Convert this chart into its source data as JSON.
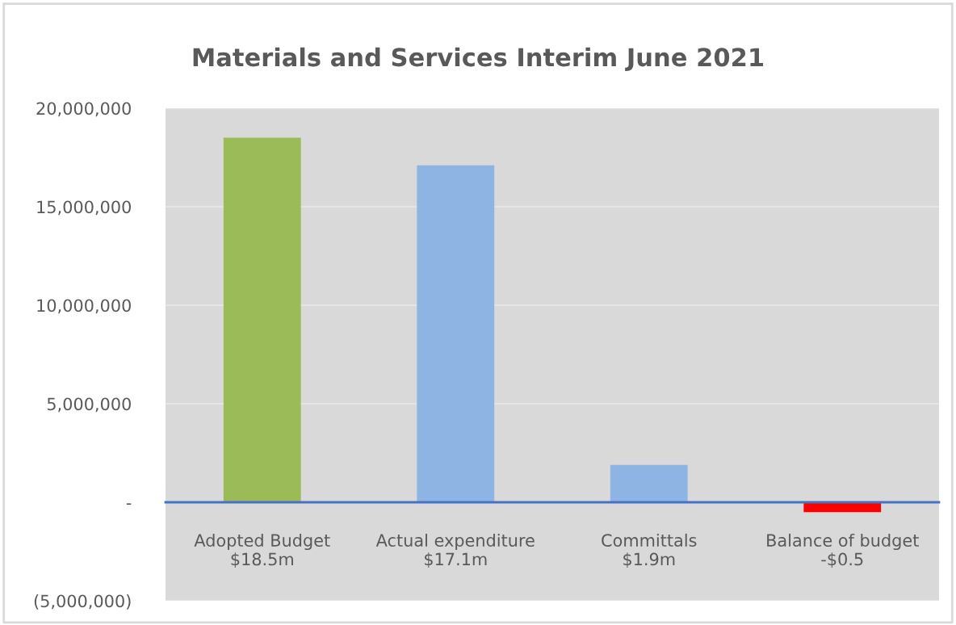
{
  "chart_data": {
    "type": "bar",
    "title": "Materials and Services Interim June 2021",
    "categories": [
      "Adopted Budget\n$18.5m",
      "Actual expenditure\n$17.1m",
      "Committals\n$1.9m",
      "Balance of budget\n-$0.5"
    ],
    "values": [
      18500000,
      17100000,
      1900000,
      -500000
    ],
    "colors": [
      "#9bbb59",
      "#8db4e2",
      "#8db4e2",
      "#ff0000"
    ],
    "ylim": [
      -5000000,
      20000000
    ],
    "yticks": [
      {
        "value": -5000000,
        "label": "(5,000,000)"
      },
      {
        "value": 0,
        "label": "-"
      },
      {
        "value": 5000000,
        "label": "5,000,000"
      },
      {
        "value": 10000000,
        "label": "10,000,000"
      },
      {
        "value": 15000000,
        "label": "15,000,000"
      },
      {
        "value": 20000000,
        "label": "20,000,000"
      }
    ],
    "grid": "y",
    "legend": false
  }
}
